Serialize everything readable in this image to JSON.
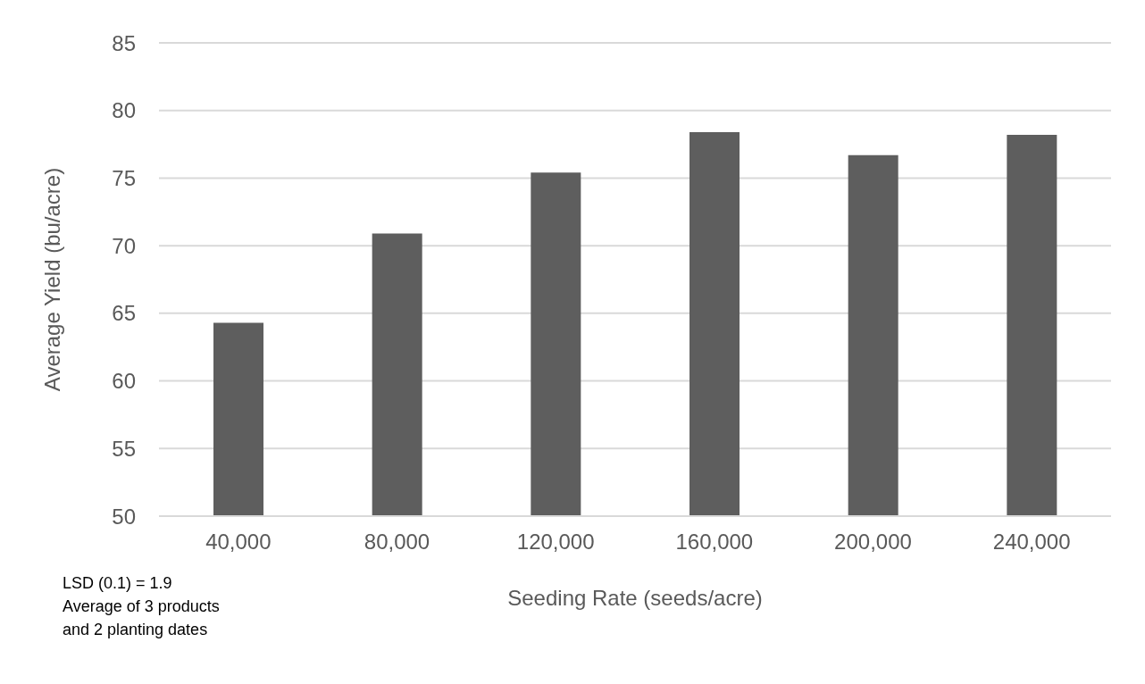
{
  "chart_data": {
    "type": "bar",
    "xlabel": "Seeding Rate (seeds/acre)",
    "ylabel": "Average Yield (bu/acre)",
    "categories": [
      "40,000",
      "80,000",
      "120,000",
      "160,000",
      "200,000",
      "240,000"
    ],
    "values": [
      64.3,
      70.9,
      75.4,
      78.4,
      76.7,
      78.2
    ],
    "color": "#5e5e5e",
    "ylim": [
      50,
      85
    ],
    "yticks": [
      50,
      55,
      60,
      65,
      70,
      75,
      80,
      85
    ],
    "grid": "y",
    "annotations": [
      "LSD (0.1) = 1.9",
      "Average of 3 products and 2 planting dates"
    ]
  }
}
